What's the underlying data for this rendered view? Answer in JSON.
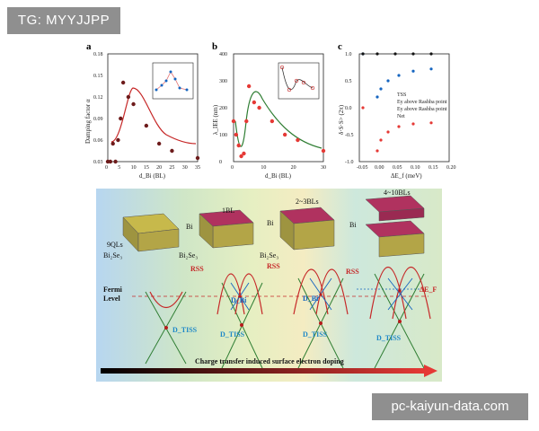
{
  "watermarks": {
    "top": "TG: MYYJJPP",
    "bottom": "pc-kaiyun-data.com"
  },
  "panels": {
    "a": {
      "label": "a",
      "ylabel": "Damping factor α",
      "xlabel": "d_Bi (BL)",
      "yticks": [
        "0.03",
        "0.06",
        "0.09",
        "0.12",
        "0.15",
        "0.18"
      ],
      "xticks": [
        "0",
        "5",
        "10",
        "15",
        "20",
        "25",
        "30",
        "35"
      ]
    },
    "b": {
      "label": "b",
      "ylabel": "λ_IEE (nm)",
      "xlabel": "d_Bi (BL)",
      "yticks": [
        "0",
        "100",
        "200",
        "300",
        "400"
      ],
      "xticks": [
        "0",
        "10",
        "20",
        "30"
      ]
    },
    "c": {
      "label": "c",
      "ylabel": "δ·S·S> (2π)",
      "xlabel": "ΔE_f (meV)",
      "yticks": [
        "-1.0",
        "-0.5",
        "0.0",
        "0.5",
        "1.0"
      ],
      "xticks": [
        "-0.05",
        "0.00",
        "0.05",
        "0.10",
        "0.15",
        "0.20"
      ],
      "legend": [
        "TSS",
        "Ey above Rashba point",
        "Ey above Rashba point",
        "Net"
      ]
    }
  },
  "chart_data": [
    {
      "type": "scatter",
      "title": "",
      "xlabel": "d_Bi (BL)",
      "ylabel": "Damping factor α",
      "xlim": [
        0,
        35
      ],
      "ylim": [
        0.03,
        0.18
      ],
      "series": [
        {
          "x": [
            0,
            1,
            2,
            3,
            4,
            5,
            6,
            8,
            10,
            15,
            20,
            25,
            35
          ],
          "y": [
            0.03,
            0.03,
            0.055,
            0.03,
            0.06,
            0.09,
            0.14,
            0.12,
            0.11,
            0.08,
            0.055,
            0.045,
            0.035
          ]
        }
      ]
    },
    {
      "type": "scatter",
      "title": "",
      "xlabel": "d_Bi (BL)",
      "ylabel": "λ_IEE (nm)",
      "xlim": [
        0,
        35
      ],
      "ylim": [
        0,
        400
      ],
      "series": [
        {
          "x": [
            0,
            1,
            2,
            3,
            4,
            5,
            6,
            8,
            10,
            15,
            20,
            25,
            35
          ],
          "y": [
            150,
            100,
            60,
            20,
            30,
            150,
            280,
            220,
            200,
            150,
            100,
            80,
            40
          ]
        }
      ]
    },
    {
      "type": "scatter",
      "title": "",
      "xlabel": "ΔE_f (meV)",
      "ylabel": "δ·S·S> (2π)",
      "xlim": [
        -0.05,
        0.2
      ],
      "ylim": [
        -1.0,
        1.0
      ],
      "series": [
        {
          "name": "TSS",
          "x": [
            -0.04,
            0.0,
            0.01,
            0.03,
            0.06,
            0.1,
            0.15
          ],
          "y": [
            1.0,
            0.2,
            0.35,
            0.5,
            0.6,
            0.68,
            0.72
          ]
        },
        {
          "name": "Ey above Rashba point",
          "x": [
            -0.04,
            0.0,
            0.01,
            0.03,
            0.06,
            0.1,
            0.15
          ],
          "y": [
            0.0,
            -0.8,
            -0.6,
            -0.45,
            -0.35,
            -0.3,
            -0.28
          ]
        },
        {
          "name": "Net",
          "x": [
            -0.04,
            0.0,
            0.05,
            0.1,
            0.15
          ],
          "y": [
            1.0,
            1.0,
            1.0,
            1.0,
            1.0
          ]
        }
      ]
    }
  ],
  "schematic": {
    "stages": [
      "9QLs",
      "1BL",
      "2~3BLs",
      "4~10BLs"
    ],
    "materials": {
      "bise": "Bi₂Se₃",
      "bi": "Bi"
    },
    "labels": {
      "fermi": "Fermi",
      "level": "Level",
      "rss": "RSS",
      "dtiss": "D_TISS",
      "dbi": "D_Bi",
      "def": "ΔE_F"
    },
    "caption": "Charge transfer induced surface electron doping"
  }
}
